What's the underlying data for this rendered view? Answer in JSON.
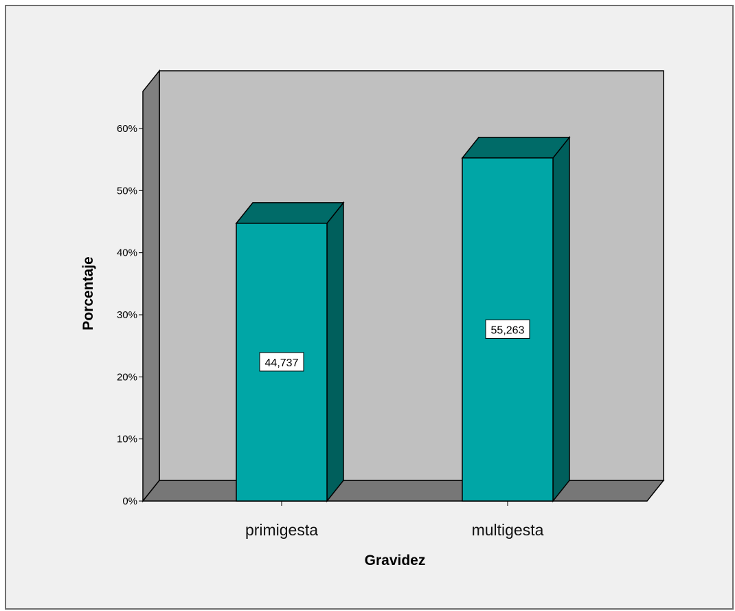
{
  "chart_data": {
    "type": "bar",
    "three_d": true,
    "categories": [
      "primigesta",
      "multigesta"
    ],
    "values": [
      44.737,
      55.263
    ],
    "data_labels": [
      "44,737",
      "55,263"
    ],
    "xlabel": "Gravidez",
    "ylabel": "Porcentaje",
    "ylim": [
      0,
      60
    ],
    "ytick_values": [
      0,
      10,
      20,
      30,
      40,
      50,
      60
    ],
    "ytick_labels": [
      "0%",
      "10%",
      "20%",
      "30%",
      "40%",
      "50%",
      "60%"
    ],
    "grid": false,
    "legend": "none",
    "colors": {
      "bar_front": "#00a6a6",
      "bar_top": "#006b68",
      "bar_side": "#005f5c",
      "wall": "#c0c0c0",
      "floor": "#777777",
      "left_wall": "#808080",
      "frame_bg": "#f0f0f0"
    }
  }
}
